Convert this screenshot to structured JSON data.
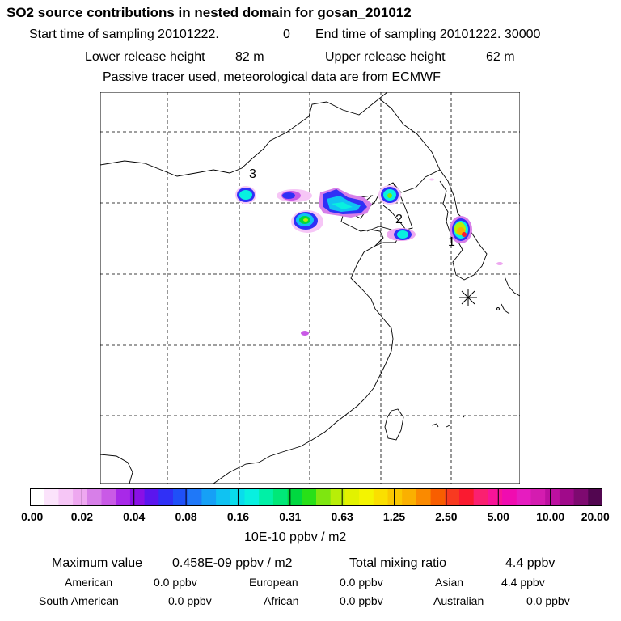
{
  "header": {
    "title": "SO2 source contributions in nested domain for gosan_201012",
    "start_label": "Start time of sampling 20101222.",
    "start_value": "0",
    "end_label": "End time of sampling 20101222. 30000",
    "lower_label": "Lower release height",
    "lower_value": "82 m",
    "upper_label": "Upper release height",
    "upper_value": "62 m",
    "tracer_note": "Passive tracer used, meteorological data are from ECMWF"
  },
  "map": {
    "source_labels": [
      "3",
      "2",
      "1"
    ],
    "receptor_marker": "asterisk-receptor"
  },
  "colorbar": {
    "tick_labels": [
      "0.00",
      "0.02",
      "0.04",
      "0.08",
      "0.16",
      "0.31",
      "0.63",
      "1.25",
      "2.50",
      "5.00",
      "10.00",
      "20.00"
    ],
    "colors": [
      "#ffffff",
      "#fbe3fb",
      "#f6c6f6",
      "#eea8f0",
      "#d77fe8",
      "#c95ae6",
      "#a829e8",
      "#8a10e6",
      "#5b16ee",
      "#3030f6",
      "#1f50f8",
      "#1f78f8",
      "#16a0f6",
      "#10c2f2",
      "#09dcec",
      "#08f0e0",
      "#00f0a6",
      "#00e878",
      "#00d840",
      "#28e018",
      "#7ee610",
      "#b8ee08",
      "#e2f200",
      "#f4f400",
      "#fadf00",
      "#fac800",
      "#fab000",
      "#fa8a00",
      "#f85e00",
      "#f83a20",
      "#fa1a30",
      "#fa2070",
      "#f81498",
      "#f00cb0",
      "#e61cc0",
      "#d41cb0",
      "#bc10a0",
      "#a00a8a",
      "#7e0a70",
      "#520650"
    ],
    "unit": "10E-10 ppbv / m2"
  },
  "summary": {
    "max_label": "Maximum value",
    "max_value": "0.458E-09 ppbv / m2",
    "total_label": "Total mixing ratio",
    "total_value": "4.4 ppbv",
    "regions": [
      {
        "name": "American",
        "value": "0.0 ppbv"
      },
      {
        "name": "European",
        "value": "0.0 ppbv"
      },
      {
        "name": "Asian",
        "value": "4.4 ppbv"
      },
      {
        "name": "South American",
        "value": "0.0 ppbv"
      },
      {
        "name": "African",
        "value": "0.0 ppbv"
      },
      {
        "name": "Australian",
        "value": "0.0 ppbv"
      }
    ]
  }
}
